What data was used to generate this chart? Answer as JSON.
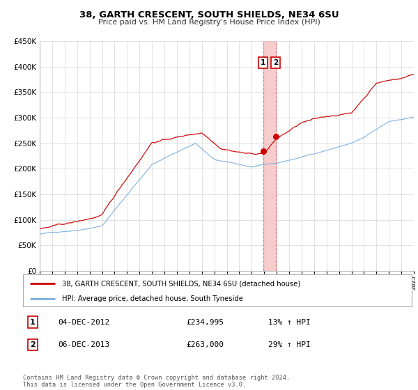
{
  "title": "38, GARTH CRESCENT, SOUTH SHIELDS, NE34 6SU",
  "subtitle": "Price paid vs. HM Land Registry's House Price Index (HPI)",
  "legend_entry1": "38, GARTH CRESCENT, SOUTH SHIELDS, NE34 6SU (detached house)",
  "legend_entry2": "HPI: Average price, detached house, South Tyneside",
  "annotation1_date": "04-DEC-2012",
  "annotation1_price": "£234,995",
  "annotation1_hpi": "13% ↑ HPI",
  "annotation1_year": 2012.92,
  "annotation1_value": 234995,
  "annotation2_date": "06-DEC-2013",
  "annotation2_price": "£263,000",
  "annotation2_hpi": "29% ↑ HPI",
  "annotation2_year": 2013.92,
  "annotation2_value": 263000,
  "red_color": "#cc0000",
  "blue_color": "#7aadde",
  "vline_color": "#f5c0c0",
  "grid_color": "#dddddd",
  "background_color": "#ffffff",
  "ylim_min": 0,
  "ylim_max": 450000,
  "xlim_min": 1995,
  "xlim_max": 2025,
  "footer_text": "Contains HM Land Registry data © Crown copyright and database right 2024.\nThis data is licensed under the Open Government Licence v3.0."
}
